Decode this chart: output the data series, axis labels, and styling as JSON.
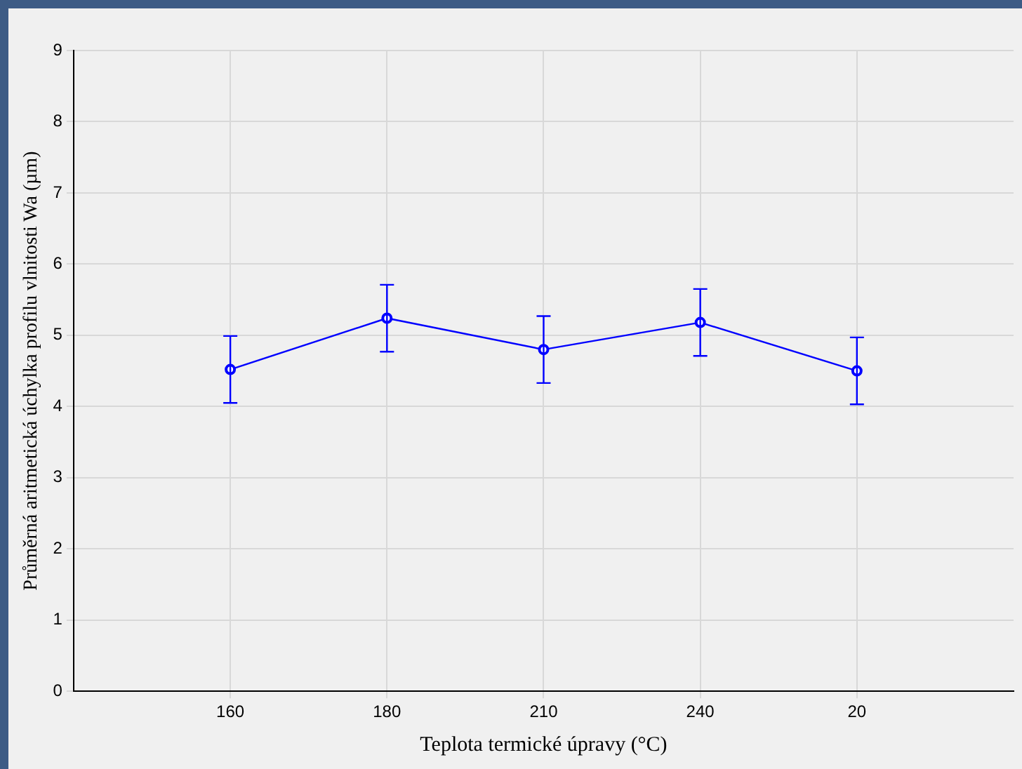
{
  "chart_data": {
    "type": "line",
    "xlabel": "Teplota termické úpravy (°C)",
    "ylabel": "Průměrná aritmetická úchylka profilu vlnitosti Wa (µm)",
    "categories": [
      "160",
      "180",
      "210",
      "240",
      "20"
    ],
    "series": [
      {
        "color": "#0000ff",
        "values": [
          4.52,
          5.24,
          4.8,
          5.18,
          4.5
        ],
        "errors": [
          0.47,
          0.47,
          0.47,
          0.47,
          0.47
        ]
      }
    ],
    "ylim": [
      0,
      9
    ],
    "yticks": [
      0,
      1,
      2,
      3,
      4,
      5,
      6,
      7,
      8,
      9
    ],
    "grid": true,
    "legend": false,
    "marker": "circle",
    "line_style": "solid"
  }
}
